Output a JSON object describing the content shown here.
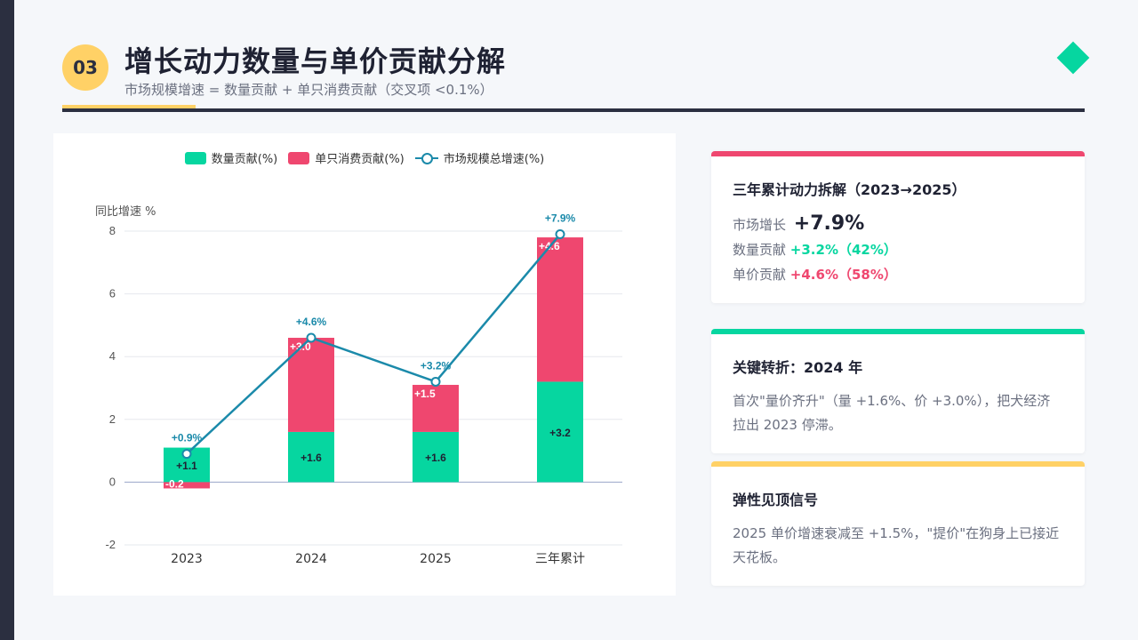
{
  "header": {
    "number": "03",
    "title": "增长动力数量与单价贡献分解",
    "subtitle": "市场规模增速 = 数量贡献 + 单只消费贡献（交叉项 <0.1%）"
  },
  "colors": {
    "quantity": "#06d6a0",
    "price": "#ef476f",
    "total": "#1b8aaa",
    "accent_gold": "#ffd166",
    "dark": "#2b2f40"
  },
  "chart_data": {
    "type": "bar",
    "stacked": true,
    "categories": [
      "2023",
      "2024",
      "2025",
      "三年累计"
    ],
    "series": [
      {
        "name": "数量贡献(%)",
        "type": "bar",
        "values": [
          1.1,
          1.6,
          1.6,
          3.2
        ],
        "labels": [
          "+1.1",
          "+1.6",
          "+1.6",
          "+3.2"
        ]
      },
      {
        "name": "单只消费贡献(%)",
        "type": "bar",
        "values": [
          -0.2,
          3.0,
          1.5,
          4.6
        ],
        "labels": [
          "-0.2",
          "+3.0",
          "+1.5",
          "+4.6"
        ]
      },
      {
        "name": "市场规模总增速(%)",
        "type": "line",
        "values": [
          0.9,
          4.6,
          3.2,
          7.9
        ],
        "labels": [
          "+0.9%",
          "+4.6%",
          "+3.2%",
          "+7.9%"
        ]
      }
    ],
    "ylabel": "同比增速 %",
    "ylim": [
      -2,
      8
    ],
    "yticks": [
      -2,
      0,
      2,
      4,
      6,
      8
    ],
    "grid": true,
    "legend": "top-center"
  },
  "cards": [
    {
      "title": "三年累计动力拆解（2023→2025）",
      "rows": [
        {
          "label": "市场增长",
          "value": "+7.9%"
        },
        {
          "label": "数量贡献",
          "value": "+3.2%（42%）"
        },
        {
          "label": "单价贡献",
          "value": "+4.6%（58%）"
        }
      ]
    },
    {
      "title": "关键转折：2024 年",
      "text": "首次\"量价齐升\"（量 +1.6%、价 +3.0%），把犬经济拉出 2023 停滞。"
    },
    {
      "title": "弹性见顶信号",
      "text": "2025 单价增速衰减至 +1.5%，\"提价\"在狗身上已接近天花板。"
    }
  ]
}
